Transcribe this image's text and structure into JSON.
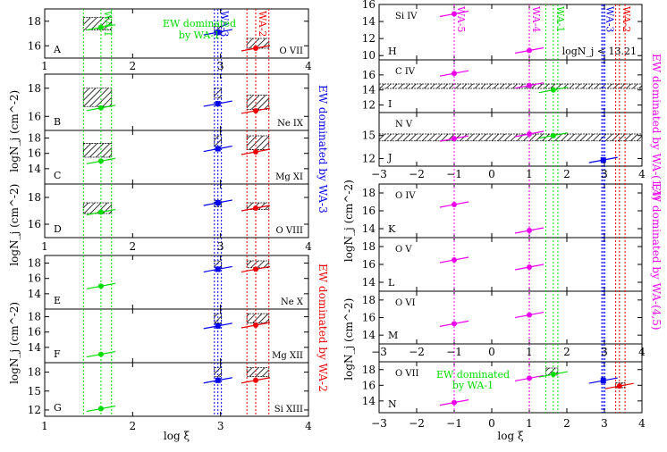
{
  "chart_data": [
    {
      "type": "scatter",
      "name": "left-panel",
      "xlabel": "log ξ",
      "ylabel": "logN_j (cm^-2)",
      "xlim": [
        1,
        4
      ],
      "x_ticks": [
        "1",
        "2",
        "3",
        "4"
      ],
      "wa_lines": [
        {
          "label": "WA-1",
          "color": "#00dd00",
          "center": 1.64,
          "low": 1.44,
          "high": 1.76
        },
        {
          "label": "WA-3",
          "color": "#0000ee",
          "center": 2.97,
          "low": 2.93,
          "high": 3.01
        },
        {
          "label": "WA-2",
          "color": "#ee0000",
          "center": 3.4,
          "low": 3.3,
          "high": 3.55
        }
      ],
      "annotations": [
        {
          "text": "EW dominated",
          "color": "#00dd00",
          "panel": 0
        },
        {
          "text": "by WA-1",
          "color": "#00dd00",
          "panel": 0
        }
      ],
      "side_labels": [
        {
          "text": "EW dominated by WA-3",
          "color": "#0000ee"
        },
        {
          "text": "EW dominated by WA-2",
          "color": "#ee0000"
        }
      ],
      "panels": [
        {
          "letter": "A",
          "ion": "O VII",
          "ylim": [
            15,
            19
          ],
          "y_ticks": [
            16,
            18
          ],
          "show_x_ticklabels": true,
          "points": [
            {
              "x": 1.64,
              "y": 17.5,
              "color": "#00dd00"
            },
            {
              "x": 2.97,
              "y": 17.1,
              "color": "#0000ee"
            },
            {
              "x": 3.4,
              "y": 15.8,
              "color": "#ee0000"
            }
          ],
          "hatch": [
            {
              "x1": 1.44,
              "x2": 1.76,
              "y1": 17.3,
              "y2": 18.3
            },
            {
              "x1": 2.93,
              "x2": 3.01,
              "y1": 16.9,
              "y2": 17.6
            },
            {
              "x1": 3.3,
              "x2": 3.55,
              "y1": 15.8,
              "y2": 16.6
            }
          ]
        },
        {
          "letter": "B",
          "ion": "Ne IX",
          "ylim": [
            15,
            19
          ],
          "y_ticks": [
            16,
            18
          ],
          "show_x_ticklabels": false,
          "points": [
            {
              "x": 1.64,
              "y": 16.6,
              "color": "#00dd00"
            },
            {
              "x": 2.97,
              "y": 16.9,
              "color": "#0000ee"
            },
            {
              "x": 3.4,
              "y": 16.4,
              "color": "#ee0000"
            }
          ],
          "hatch": [
            {
              "x1": 1.44,
              "x2": 1.76,
              "y1": 16.7,
              "y2": 18.0
            },
            {
              "x1": 2.93,
              "x2": 3.01,
              "y1": 17.3,
              "y2": 18.0
            },
            {
              "x1": 3.3,
              "x2": 3.55,
              "y1": 16.5,
              "y2": 17.5
            }
          ]
        },
        {
          "letter": "C",
          "ion": "Mg XI",
          "ylim": [
            12,
            19
          ],
          "y_ticks": [
            14,
            16,
            18
          ],
          "show_x_ticklabels": false,
          "points": [
            {
              "x": 1.64,
              "y": 15.0,
              "color": "#00dd00"
            },
            {
              "x": 2.97,
              "y": 16.6,
              "color": "#0000ee"
            },
            {
              "x": 3.4,
              "y": 16.2,
              "color": "#ee0000"
            }
          ],
          "hatch": [
            {
              "x1": 1.44,
              "x2": 1.76,
              "y1": 15.5,
              "y2": 17.3
            },
            {
              "x1": 2.93,
              "x2": 3.01,
              "y1": 16.9,
              "y2": 18.3
            },
            {
              "x1": 3.3,
              "x2": 3.55,
              "y1": 16.5,
              "y2": 18.3
            }
          ]
        },
        {
          "letter": "D",
          "ion": "O VIII",
          "ylim": [
            15,
            19
          ],
          "y_ticks": [
            16,
            18
          ],
          "show_x_ticklabels": true,
          "points": [
            {
              "x": 1.64,
              "y": 16.9,
              "color": "#00dd00"
            },
            {
              "x": 2.97,
              "y": 17.6,
              "color": "#0000ee"
            },
            {
              "x": 3.4,
              "y": 17.2,
              "color": "#ee0000"
            }
          ],
          "hatch": [
            {
              "x1": 1.44,
              "x2": 1.76,
              "y1": 16.8,
              "y2": 17.6
            },
            {
              "x1": 2.93,
              "x2": 3.01,
              "y1": 17.3,
              "y2": 17.8
            },
            {
              "x1": 3.3,
              "x2": 3.55,
              "y1": 17.1,
              "y2": 17.6
            }
          ]
        },
        {
          "letter": "E",
          "ion": "Ne X",
          "ylim": [
            12,
            19
          ],
          "y_ticks": [
            14,
            16,
            18
          ],
          "show_x_ticklabels": false,
          "points": [
            {
              "x": 1.64,
              "y": 15.0,
              "color": "#00dd00"
            },
            {
              "x": 2.97,
              "y": 17.2,
              "color": "#0000ee"
            },
            {
              "x": 3.4,
              "y": 17.2,
              "color": "#ee0000"
            }
          ],
          "hatch": [
            {
              "x1": 2.93,
              "x2": 3.01,
              "y1": 17.4,
              "y2": 18.3
            },
            {
              "x1": 3.3,
              "x2": 3.55,
              "y1": 17.4,
              "y2": 18.3
            }
          ]
        },
        {
          "letter": "F",
          "ion": "Mg XII",
          "ylim": [
            12,
            19
          ],
          "y_ticks": [
            14,
            16,
            18
          ],
          "show_x_ticklabels": false,
          "points": [
            {
              "x": 1.64,
              "y": 13.1,
              "color": "#00dd00"
            },
            {
              "x": 2.97,
              "y": 16.8,
              "color": "#0000ee"
            },
            {
              "x": 3.4,
              "y": 16.9,
              "color": "#ee0000"
            }
          ],
          "hatch": [
            {
              "x1": 2.93,
              "x2": 3.01,
              "y1": 17.2,
              "y2": 18.4
            },
            {
              "x1": 3.3,
              "x2": 3.55,
              "y1": 17.2,
              "y2": 18.4
            }
          ]
        },
        {
          "letter": "G",
          "ion": "Si XIII",
          "ylim": [
            11,
            19.5
          ],
          "y_ticks": [
            12,
            15,
            18
          ],
          "show_x_ticklabels": true,
          "points": [
            {
              "x": 1.64,
              "y": 12.2,
              "color": "#00dd00"
            },
            {
              "x": 2.97,
              "y": 16.7,
              "color": "#0000ee"
            },
            {
              "x": 3.4,
              "y": 16.7,
              "color": "#ee0000"
            }
          ],
          "hatch": [
            {
              "x1": 2.93,
              "x2": 3.01,
              "y1": 17.3,
              "y2": 18.7
            },
            {
              "x1": 3.3,
              "x2": 3.55,
              "y1": 17.3,
              "y2": 18.7
            }
          ]
        }
      ]
    },
    {
      "type": "scatter",
      "name": "right-panel",
      "xlabel": "log ξ",
      "ylabel": "logN_j (cm^-2)",
      "xlim": [
        -3,
        4
      ],
      "x_ticks": [
        "−3",
        "−2",
        "−1",
        "0",
        "1",
        "2",
        "3",
        "4"
      ],
      "wa_lines": [
        {
          "label": "WA-5",
          "color": "#ee00ee",
          "center": -1.0,
          "low": -1.03,
          "high": -0.97
        },
        {
          "label": "WA-4",
          "color": "#ee00ee",
          "center": 1.0,
          "low": 0.97,
          "high": 1.03
        },
        {
          "label": "WA-1",
          "color": "#00dd00",
          "center": 1.64,
          "low": 1.44,
          "high": 1.76
        },
        {
          "label": "WA-3",
          "color": "#0000ee",
          "center": 2.97,
          "low": 2.93,
          "high": 3.01
        },
        {
          "label": "WA-2",
          "color": "#ee0000",
          "center": 3.4,
          "low": 3.3,
          "high": 3.55
        }
      ],
      "annotations": [
        {
          "text": "logN_j < 13.21",
          "color": "#000000",
          "panel": 0
        },
        {
          "text": "EW dominated",
          "color": "#00dd00",
          "panel": 7
        },
        {
          "text": "by WA-1",
          "color": "#00dd00",
          "panel": 7
        }
      ],
      "side_labels": [
        {
          "text": "EW dominated by WA-(1,4)",
          "color": "#ee00ee"
        },
        {
          "text": "EW dominated by WA-(4,5)",
          "color": "#ee00ee"
        }
      ],
      "panels": [
        {
          "letter": "H",
          "ion": "Si IV",
          "ylim": [
            9.5,
            16
          ],
          "y_ticks": [
            10,
            12,
            14,
            16
          ],
          "show_x_ticklabels": false,
          "points": [
            {
              "x": -1.0,
              "y": 14.9,
              "color": "#ee00ee"
            },
            {
              "x": 1.0,
              "y": 10.6,
              "color": "#ee00ee"
            }
          ],
          "hatch": []
        },
        {
          "letter": "I",
          "ion": "C IV",
          "ylim": [
            11,
            18
          ],
          "y_ticks": [
            12,
            14,
            16
          ],
          "show_x_ticklabels": false,
          "points": [
            {
              "x": -1.0,
              "y": 16.2,
              "color": "#ee00ee"
            },
            {
              "x": 1.0,
              "y": 14.6,
              "color": "#ee00ee"
            },
            {
              "x": 1.64,
              "y": 14.0,
              "color": "#00dd00"
            }
          ],
          "hatch": [
            {
              "x1": -3.0,
              "x2": 4.0,
              "y1": 14.2,
              "y2": 14.8
            }
          ]
        },
        {
          "letter": "J",
          "ion": "N V",
          "ylim": [
            11,
            18
          ],
          "y_ticks": [
            12,
            15
          ],
          "show_x_ticklabels": true,
          "points": [
            {
              "x": -1.0,
              "y": 14.6,
              "color": "#ee00ee"
            },
            {
              "x": 1.0,
              "y": 15.2,
              "color": "#ee00ee"
            },
            {
              "x": 1.64,
              "y": 15.0,
              "color": "#00dd00"
            },
            {
              "x": 2.97,
              "y": 11.8,
              "color": "#0000ee"
            }
          ],
          "hatch": [
            {
              "x1": -3.0,
              "x2": 4.0,
              "y1": 14.3,
              "y2": 15.2
            }
          ]
        },
        {
          "letter": "K",
          "ion": "O IV",
          "ylim": [
            13,
            19
          ],
          "y_ticks": [
            14,
            16,
            18
          ],
          "show_x_ticklabels": false,
          "points": [
            {
              "x": -1.0,
              "y": 16.7,
              "color": "#ee00ee"
            },
            {
              "x": 1.0,
              "y": 13.8,
              "color": "#ee00ee"
            }
          ],
          "hatch": []
        },
        {
          "letter": "L",
          "ion": "O V",
          "ylim": [
            13,
            19
          ],
          "y_ticks": [
            14,
            16,
            18
          ],
          "show_x_ticklabels": false,
          "points": [
            {
              "x": -1.0,
              "y": 16.5,
              "color": "#ee00ee"
            },
            {
              "x": 1.0,
              "y": 15.7,
              "color": "#ee00ee"
            }
          ],
          "hatch": []
        },
        {
          "letter": "M",
          "ion": "O VI",
          "ylim": [
            13,
            19
          ],
          "y_ticks": [
            14,
            16,
            18
          ],
          "show_x_ticklabels": false,
          "points": [
            {
              "x": -1.0,
              "y": 15.3,
              "color": "#ee00ee"
            },
            {
              "x": 1.0,
              "y": 16.3,
              "color": "#ee00ee"
            }
          ],
          "hatch": []
        },
        {
          "letter": "",
          "ion": "",
          "ylim": [
            0,
            1
          ],
          "y_ticks": [],
          "show_x_ticklabels": true,
          "axis_only": true,
          "points": [],
          "hatch": []
        },
        {
          "letter": "N",
          "ion": "O VII",
          "ylim": [
            12.5,
            19
          ],
          "y_ticks": [
            14,
            16,
            18
          ],
          "show_x_ticklabels": false,
          "points": [
            {
              "x": -1.0,
              "y": 13.8,
              "color": "#ee00ee"
            },
            {
              "x": 1.0,
              "y": 16.9,
              "color": "#ee00ee"
            },
            {
              "x": 1.64,
              "y": 17.4,
              "color": "#00dd00"
            },
            {
              "x": 2.97,
              "y": 16.6,
              "color": "#0000ee"
            },
            {
              "x": 3.4,
              "y": 15.9,
              "color": "#ee0000"
            }
          ],
          "hatch": [
            {
              "x1": 1.44,
              "x2": 1.76,
              "y1": 17.3,
              "y2": 18.2
            },
            {
              "x1": 2.93,
              "x2": 3.01,
              "y1": 16.4,
              "y2": 17.0
            },
            {
              "x1": 3.3,
              "x2": 3.55,
              "y1": 15.7,
              "y2": 16.3
            }
          ]
        }
      ]
    }
  ]
}
